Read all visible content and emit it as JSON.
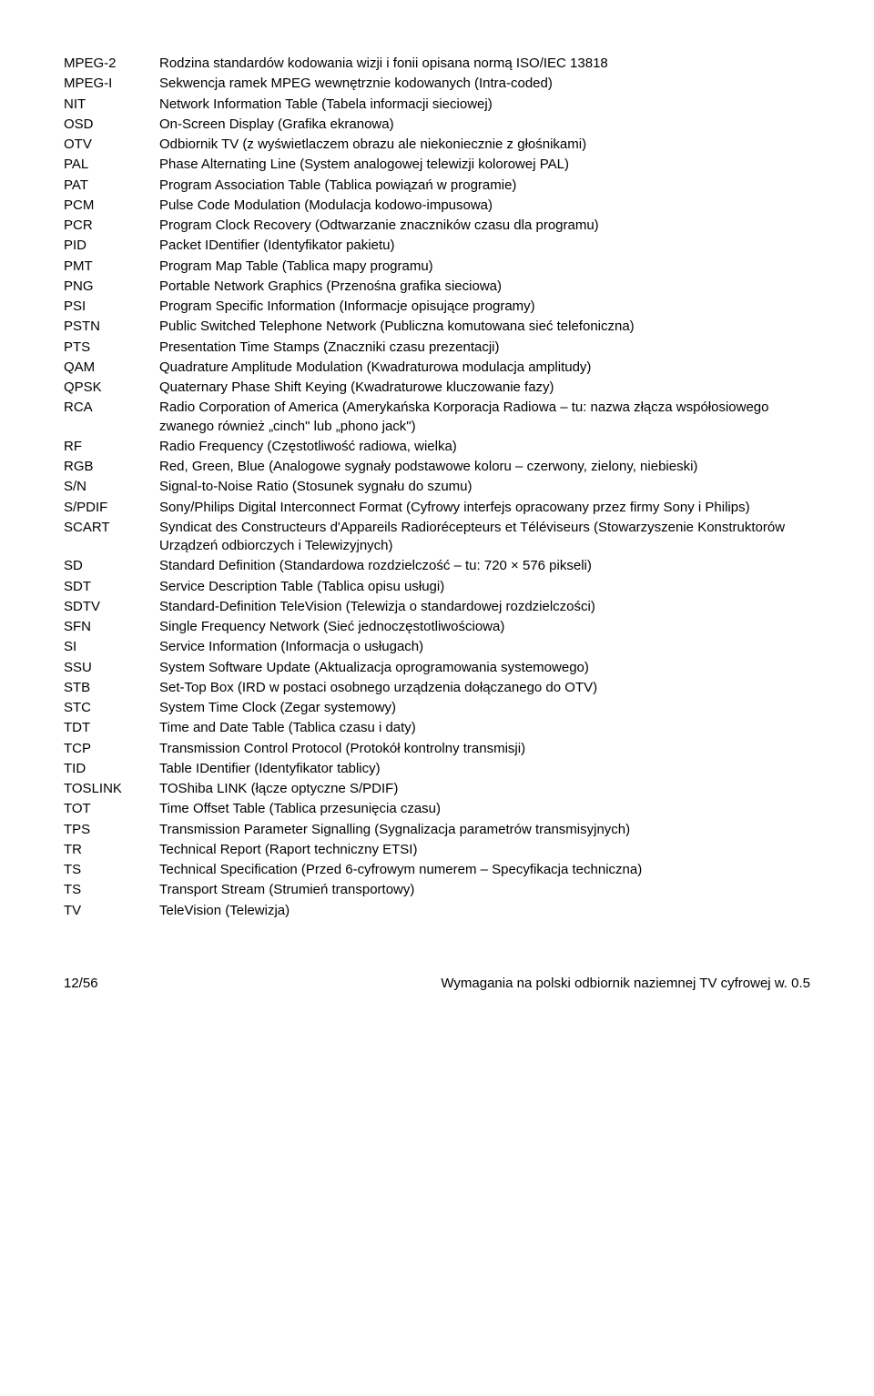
{
  "rows": [
    {
      "abbr": "MPEG-2",
      "def": "Rodzina standardów kodowania wizji i fonii opisana normą ISO/IEC 13818"
    },
    {
      "abbr": "MPEG-I",
      "def": "Sekwencja ramek MPEG wewnętrznie kodowanych (Intra-coded)"
    },
    {
      "abbr": "NIT",
      "def": "Network Information Table (Tabela informacji sieciowej)"
    },
    {
      "abbr": "OSD",
      "def": "On-Screen Display (Grafika ekranowa)"
    },
    {
      "abbr": "OTV",
      "def": "Odbiornik TV (z wyświetlaczem obrazu ale niekoniecznie z głośnikami)"
    },
    {
      "abbr": "PAL",
      "def": "Phase Alternating Line (System analogowej telewizji kolorowej PAL)"
    },
    {
      "abbr": "PAT",
      "def": "Program Association Table (Tablica powiązań w programie)"
    },
    {
      "abbr": "PCM",
      "def": "Pulse Code Modulation (Modulacja kodowo-impusowa)"
    },
    {
      "abbr": "PCR",
      "def": "Program Clock Recovery (Odtwarzanie znaczników czasu dla programu)"
    },
    {
      "abbr": "PID",
      "def": "Packet IDentifier (Identyfikator pakietu)"
    },
    {
      "abbr": "PMT",
      "def": "Program Map Table (Tablica mapy programu)"
    },
    {
      "abbr": "PNG",
      "def": "Portable Network Graphics (Przenośna grafika sieciowa)"
    },
    {
      "abbr": "PSI",
      "def": "Program Specific Information (Informacje opisujące programy)"
    },
    {
      "abbr": "PSTN",
      "def": "Public Switched Telephone Network (Publiczna komutowana sieć telefoniczna)"
    },
    {
      "abbr": "PTS",
      "def": "Presentation Time Stamps (Znaczniki czasu prezentacji)"
    },
    {
      "abbr": "QAM",
      "def": "Quadrature Amplitude Modulation (Kwadraturowa modulacja amplitudy)"
    },
    {
      "abbr": "QPSK",
      "def": "Quaternary Phase Shift Keying (Kwadraturowe kluczowanie fazy)"
    },
    {
      "abbr": "RCA",
      "def": "Radio Corporation of America (Amerykańska Korporacja Radiowa – tu: nazwa złącza współosiowego zwanego również „cinch\" lub „phono jack\")"
    },
    {
      "abbr": "RF",
      "def": "Radio Frequency (Częstotliwość radiowa, wielka)"
    },
    {
      "abbr": "RGB",
      "def": "Red, Green, Blue (Analogowe sygnały podstawowe koloru – czerwony, zielony, niebieski)"
    },
    {
      "abbr": "S/N",
      "def": "Signal-to-Noise Ratio (Stosunek sygnału do szumu)"
    },
    {
      "abbr": "S/PDIF",
      "def": "Sony/Philips Digital Interconnect Format (Cyfrowy interfejs opracowany przez firmy Sony i Philips)"
    },
    {
      "abbr": "SCART",
      "def": "Syndicat des Constructeurs d'Appareils Radiorécepteurs et Téléviseurs (Stowarzyszenie Konstruktorów Urządzeń odbiorczych i Telewizyjnych)"
    },
    {
      "abbr": "SD",
      "def": "Standard Definition (Standardowa rozdzielczość – tu: 720 × 576 pikseli)"
    },
    {
      "abbr": "SDT",
      "def": "Service Description Table (Tablica opisu usługi)"
    },
    {
      "abbr": "SDTV",
      "def": "Standard-Definition TeleVision (Telewizja o standardowej rozdzielczości)"
    },
    {
      "abbr": "SFN",
      "def": "Single Frequency Network (Sieć jednoczęstotliwościowa)"
    },
    {
      "abbr": "SI",
      "def": "Service Information (Informacja o usługach)"
    },
    {
      "abbr": "SSU",
      "def": "System Software Update (Aktualizacja oprogramowania systemowego)"
    },
    {
      "abbr": "STB",
      "def": "Set-Top Box (IRD w postaci osobnego urządzenia dołączanego do OTV)"
    },
    {
      "abbr": "STC",
      "def": "System Time Clock (Zegar systemowy)"
    },
    {
      "abbr": "TDT",
      "def": "Time and Date Table (Tablica czasu i daty)"
    },
    {
      "abbr": "TCP",
      "def": "Transmission Control Protocol (Protokół kontrolny transmisji)"
    },
    {
      "abbr": "TID",
      "def": "Table IDentifier (Identyfikator tablicy)"
    },
    {
      "abbr": "TOSLINK",
      "def": "TOShiba LINK (łącze optyczne S/PDIF)"
    },
    {
      "abbr": "TOT",
      "def": "Time Offset Table (Tablica przesunięcia czasu)"
    },
    {
      "abbr": "TPS",
      "def": "Transmission Parameter Signalling (Sygnalizacja parametrów transmisyjnych)"
    },
    {
      "abbr": "TR",
      "def": "Technical Report (Raport techniczny ETSI)"
    },
    {
      "abbr": "TS",
      "def": "Technical Specification (Przed 6-cyfrowym numerem – Specyfikacja techniczna)"
    },
    {
      "abbr": "TS",
      "def": "Transport Stream (Strumień transportowy)"
    },
    {
      "abbr": "TV",
      "def": "TeleVision (Telewizja)"
    }
  ],
  "footer": {
    "left": "12/56",
    "right": "Wymagania na polski odbiornik naziemnej TV cyfrowej w. 0.5"
  }
}
